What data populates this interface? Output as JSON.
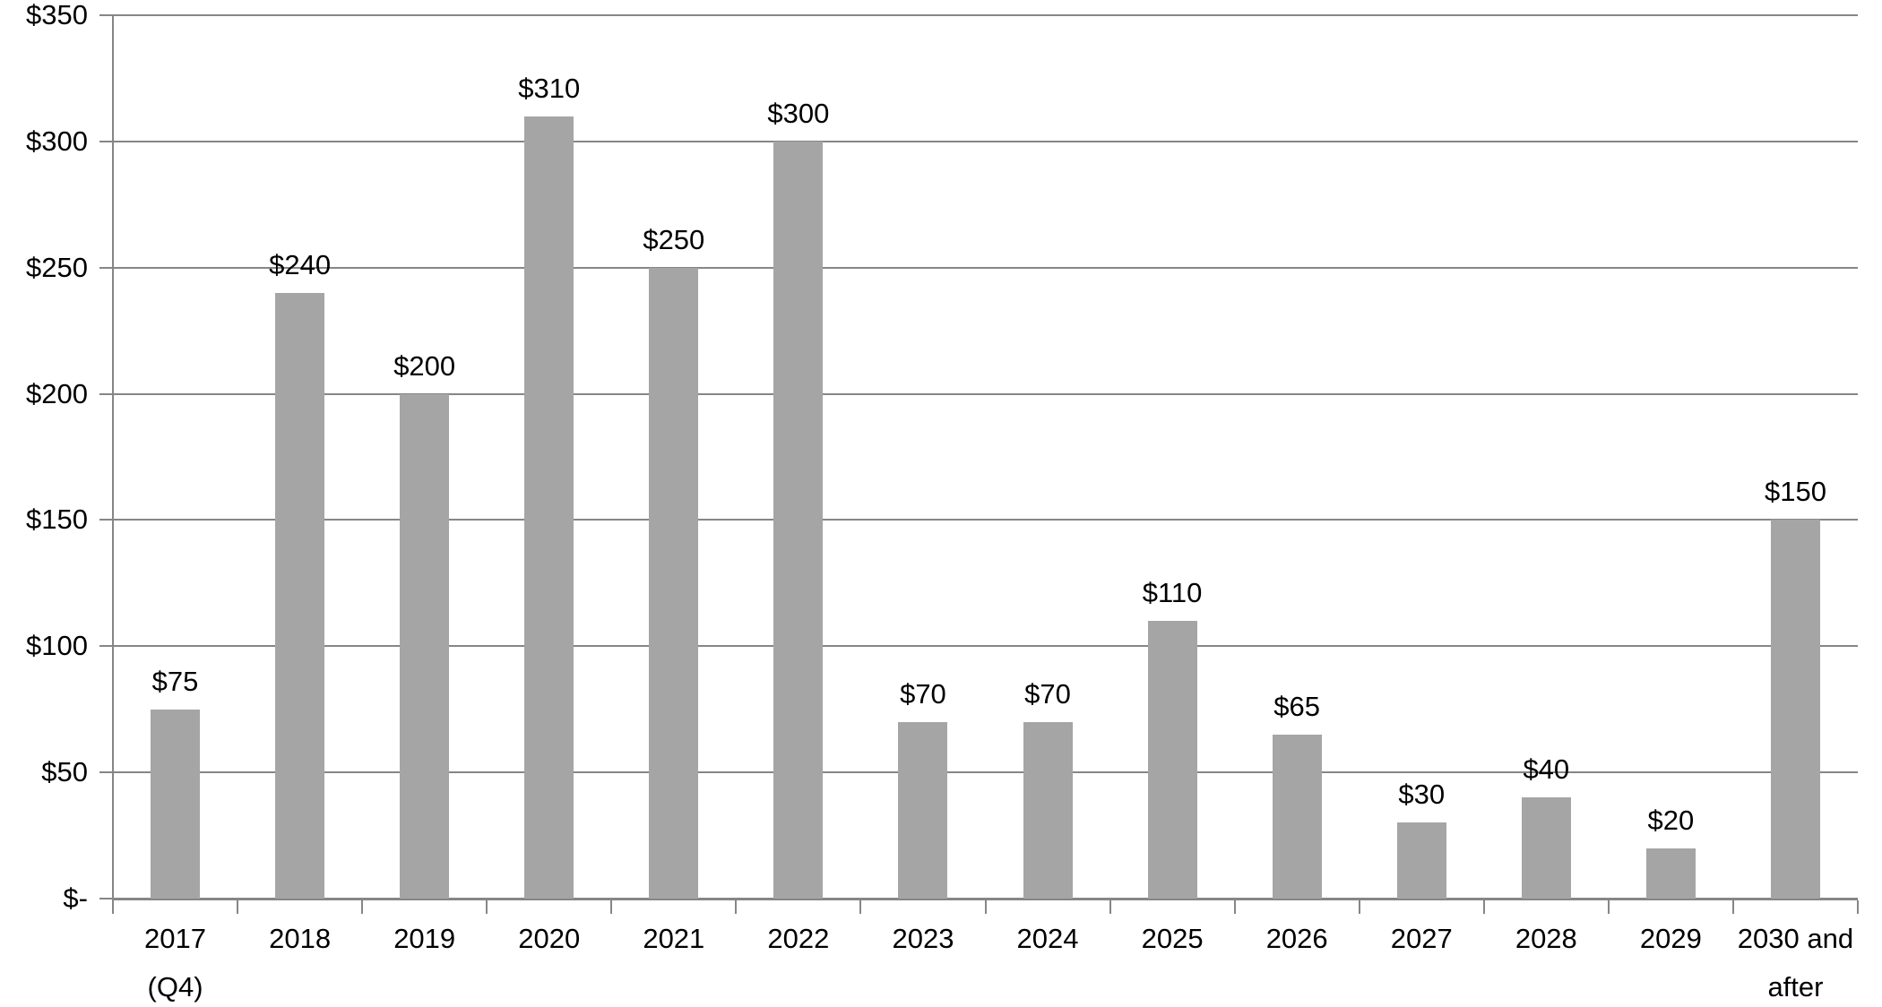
{
  "chart_data": {
    "type": "bar",
    "title": "",
    "legend": "none",
    "grid": true,
    "categories": [
      [
        "2017",
        "(Q4)"
      ],
      [
        "2018"
      ],
      [
        "2019"
      ],
      [
        "2020"
      ],
      [
        "2021"
      ],
      [
        "2022"
      ],
      [
        "2023"
      ],
      [
        "2024"
      ],
      [
        "2025"
      ],
      [
        "2026"
      ],
      [
        "2027"
      ],
      [
        "2028"
      ],
      [
        "2029"
      ],
      [
        "2030 and",
        "after"
      ]
    ],
    "values": [
      75,
      240,
      200,
      310,
      250,
      300,
      70,
      70,
      110,
      65,
      30,
      40,
      20,
      150
    ],
    "data_labels": [
      "$75",
      "$240",
      "$200",
      "$310",
      "$250",
      "$300",
      "$70",
      "$70",
      "$110",
      "$65",
      "$30",
      "$40",
      "$20",
      "$150"
    ],
    "y_axis": {
      "min": 0,
      "max": 350,
      "step": 50,
      "ticks": [
        {
          "value": 350,
          "label": "$350"
        },
        {
          "value": 300,
          "label": "$300"
        },
        {
          "value": 250,
          "label": "$250"
        },
        {
          "value": 200,
          "label": "$200"
        },
        {
          "value": 150,
          "label": "$150"
        },
        {
          "value": 100,
          "label": "$100"
        },
        {
          "value": 50,
          "label": "$50"
        },
        {
          "value": 0,
          "label": "$-"
        }
      ]
    },
    "styles": {
      "bar_color": "#a5a5a5",
      "gridline_color": "#868686",
      "axis_color": "#868686",
      "text_color": "#000000",
      "background": "#ffffff"
    }
  }
}
